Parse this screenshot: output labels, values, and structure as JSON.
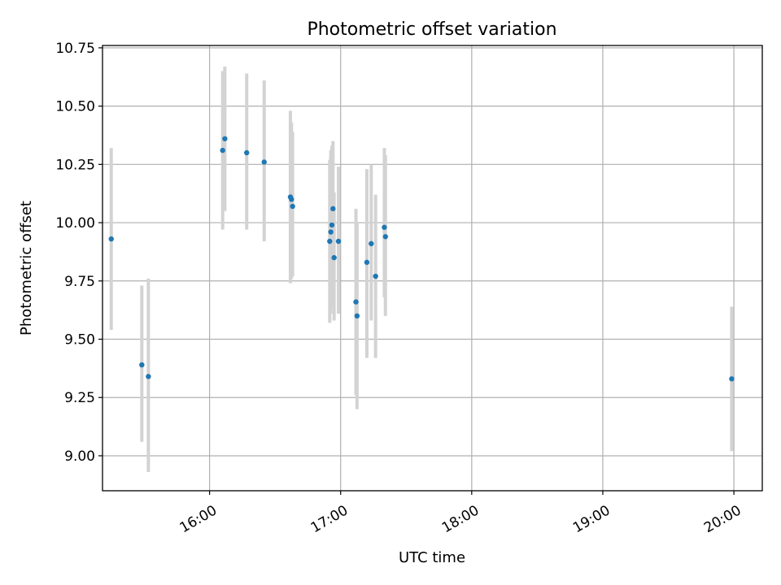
{
  "chart_data": {
    "type": "scatter",
    "title": "Photometric offset variation",
    "xlabel": "UTC time",
    "ylabel": "Photometric offset",
    "x_unit": "UTC time (HH:MM)",
    "xlim": [
      "15:11",
      "20:13"
    ],
    "ylim": [
      8.85,
      10.76
    ],
    "x_ticks": [
      "16:00",
      "17:00",
      "18:00",
      "19:00",
      "20:00"
    ],
    "y_ticks": [
      "9.00",
      "9.25",
      "9.50",
      "9.75",
      "10.00",
      "10.25",
      "10.50",
      "10.75"
    ],
    "grid": true,
    "colors": {
      "point": "#1f77b4",
      "errorbar": "#d3d3d3",
      "grid": "#b0b0b0"
    },
    "points": [
      {
        "x": "15:15",
        "y": 9.93,
        "yerr_low": 9.54,
        "yerr_high": 10.32
      },
      {
        "x": "15:29",
        "y": 9.39,
        "yerr_low": 9.06,
        "yerr_high": 9.73
      },
      {
        "x": "15:32",
        "y": 9.34,
        "yerr_low": 8.93,
        "yerr_high": 9.76
      },
      {
        "x": "16:06",
        "y": 10.31,
        "yerr_low": 9.97,
        "yerr_high": 10.65
      },
      {
        "x": "16:07",
        "y": 10.36,
        "yerr_low": 10.05,
        "yerr_high": 10.67
      },
      {
        "x": "16:17",
        "y": 10.3,
        "yerr_low": 9.97,
        "yerr_high": 10.64
      },
      {
        "x": "16:25",
        "y": 10.26,
        "yerr_low": 9.92,
        "yerr_high": 10.61
      },
      {
        "x": "16:37",
        "y": 10.11,
        "yerr_low": 9.74,
        "yerr_high": 10.48
      },
      {
        "x": "16:37.5",
        "y": 10.1,
        "yerr_low": 9.76,
        "yerr_high": 10.43
      },
      {
        "x": "16:38",
        "y": 10.07,
        "yerr_low": 9.77,
        "yerr_high": 10.39
      },
      {
        "x": "16:55",
        "y": 9.92,
        "yerr_low": 9.57,
        "yerr_high": 10.27
      },
      {
        "x": "16:55.5",
        "y": 9.96,
        "yerr_low": 9.61,
        "yerr_high": 10.31
      },
      {
        "x": "16:56",
        "y": 9.99,
        "yerr_low": 9.64,
        "yerr_high": 10.33
      },
      {
        "x": "16:56.5",
        "y": 10.06,
        "yerr_low": 9.77,
        "yerr_high": 10.35
      },
      {
        "x": "16:57",
        "y": 9.85,
        "yerr_low": 9.58,
        "yerr_high": 10.13
      },
      {
        "x": "16:59",
        "y": 9.92,
        "yerr_low": 9.61,
        "yerr_high": 10.24
      },
      {
        "x": "17:07",
        "y": 9.66,
        "yerr_low": 9.26,
        "yerr_high": 10.06
      },
      {
        "x": "17:07.5",
        "y": 9.6,
        "yerr_low": 9.2,
        "yerr_high": 10.0
      },
      {
        "x": "17:12",
        "y": 9.83,
        "yerr_low": 9.42,
        "yerr_high": 10.23
      },
      {
        "x": "17:14",
        "y": 9.91,
        "yerr_low": 9.58,
        "yerr_high": 10.25
      },
      {
        "x": "17:16",
        "y": 9.77,
        "yerr_low": 9.42,
        "yerr_high": 10.12
      },
      {
        "x": "17:20",
        "y": 9.98,
        "yerr_low": 9.68,
        "yerr_high": 10.32
      },
      {
        "x": "17:20.5",
        "y": 9.94,
        "yerr_low": 9.6,
        "yerr_high": 10.29
      },
      {
        "x": "19:59",
        "y": 9.33,
        "yerr_low": 9.02,
        "yerr_high": 9.64
      }
    ]
  }
}
